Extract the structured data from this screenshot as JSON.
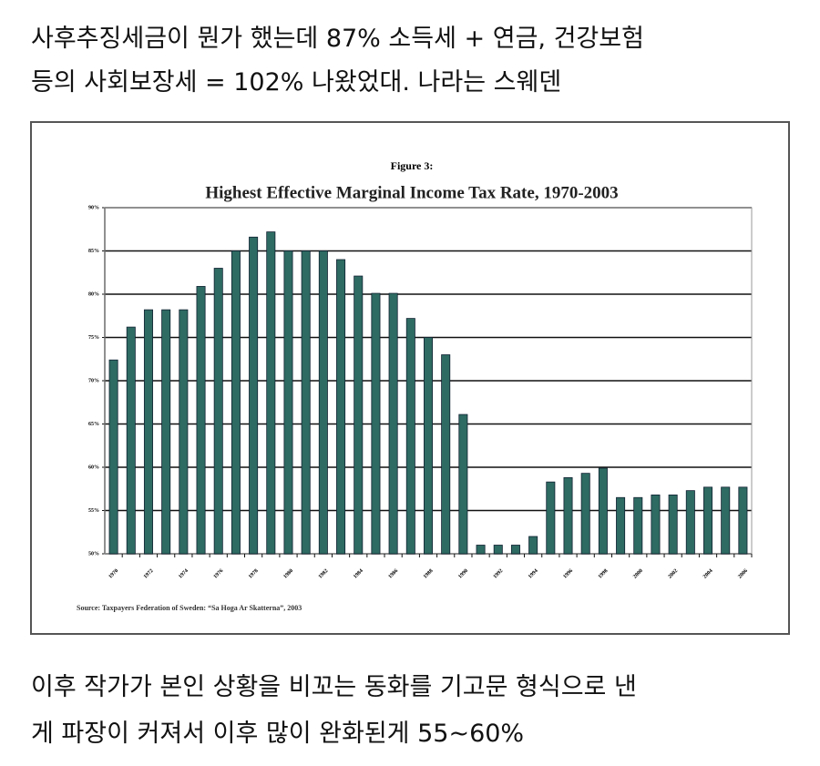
{
  "header": {
    "lines": [
      "사후추징세금이 뭔가 했는데 87% 소득세 + 연금, 건강보험",
      "등의 사회보장세 = 102% 나왔었대. 나라는 스웨덴"
    ]
  },
  "chart_data": {
    "type": "bar",
    "subtitle": "Figure 3:",
    "title": "Highest Effective Marginal Income Tax Rate, 1970-2003",
    "source": "Source:  Taxpayers Federation of Sweden: “Sa Hoga Ar Skatterna”, 2003",
    "categories": [
      "1970",
      null,
      "1972",
      null,
      "1974",
      null,
      "1976",
      null,
      "1978",
      null,
      "1980",
      null,
      "1982",
      null,
      "1984",
      null,
      "1986",
      null,
      "1988",
      null,
      "1990",
      null,
      "1992",
      null,
      "1994",
      null,
      "1996",
      null,
      "1998",
      null,
      "2000",
      null,
      "2002",
      null,
      "2004",
      null,
      "2006"
    ],
    "values": [
      72.4,
      76.2,
      78.2,
      78.2,
      78.2,
      80.9,
      83,
      85,
      86.6,
      87.2,
      85,
      85,
      85,
      84,
      82.1,
      80.1,
      80.1,
      77.2,
      75,
      73,
      66.1,
      51,
      51,
      51,
      52,
      58.3,
      58.8,
      59.3,
      59.9,
      56.5,
      56.5,
      56.8,
      56.8,
      57.3,
      57.7,
      57.7,
      57.7
    ],
    "color": "#2e6b62",
    "ylim": [
      50,
      90
    ],
    "yticks": [
      {
        "value": 50,
        "label": "50%"
      },
      {
        "value": 55,
        "label": "55%"
      },
      {
        "value": 60,
        "label": "60%"
      },
      {
        "value": 65,
        "label": "65%"
      },
      {
        "value": 70,
        "label": "70%"
      },
      {
        "value": 75,
        "label": "75%"
      },
      {
        "value": 80,
        "label": "80%"
      },
      {
        "value": 85,
        "label": "85%"
      },
      {
        "value": 90,
        "label": "90%"
      }
    ],
    "grid": true
  },
  "footer": {
    "lines": [
      "이후 작가가 본인 상황을 비꼬는 동화를 기고문 형식으로 낸",
      "게 파장이 커져서 이후 많이 완화된게 55~60%"
    ]
  }
}
